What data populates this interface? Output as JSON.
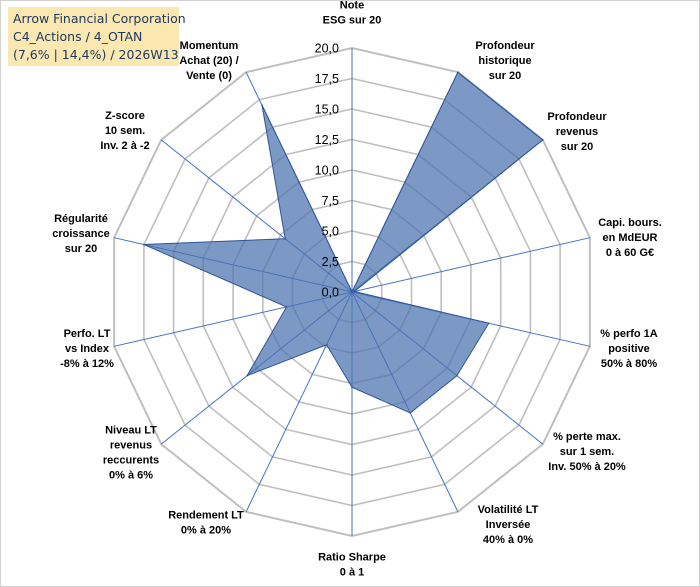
{
  "title_box": {
    "line1": "Arrow Financial Corporation",
    "line2": "C4_Actions / 4_OTAN",
    "line3": "(7,6% | 14,4%) / 2026W13"
  },
  "chart_data": {
    "type": "radar",
    "range": [
      0,
      20
    ],
    "ticks": [
      0,
      2.5,
      5,
      7.5,
      10,
      12.5,
      15,
      17.5,
      20
    ],
    "tick_labels": [
      "0,0",
      "2,5",
      "5,0",
      "7,5",
      "10,0",
      "12,5",
      "15,0",
      "17,5",
      "20,0"
    ],
    "grid": true,
    "axes": [
      {
        "label": [
          "Note",
          "ESG sur 20"
        ],
        "value": 0
      },
      {
        "label": [
          "Profondeur",
          "historique",
          "sur 20"
        ],
        "value": 20
      },
      {
        "label": [
          "Profondeur",
          "revenus",
          "sur 20"
        ],
        "value": 20
      },
      {
        "label": [
          "Capi. bours.",
          "en MdEUR",
          "0 à 60 G€"
        ],
        "value": 0.2
      },
      {
        "label": [
          "% perfo 1A",
          "positive",
          "50% à 80%"
        ],
        "value": 11.5
      },
      {
        "label": [
          "% perte max.",
          "sur 1 sem.",
          "Inv. 50% à 20%"
        ],
        "value": 11
      },
      {
        "label": [
          "Volatilité LT",
          "Inversée",
          "40% à 0%"
        ],
        "value": 11
      },
      {
        "label": [
          "Ratio Sharpe",
          "0 à 1"
        ],
        "value": 7.8
      },
      {
        "label": [
          "Rendement LT",
          "0% à 20%"
        ],
        "value": 4.8
      },
      {
        "label": [
          "Niveau LT",
          "revenus",
          "reccurents",
          "0% à 6%"
        ],
        "value": 11
      },
      {
        "label": [
          "Perfo. LT",
          "vs Index",
          "-8% à 12%"
        ],
        "value": 5.5
      },
      {
        "label": [
          "Régularité",
          "croissance",
          "sur 20"
        ],
        "value": 17.5
      },
      {
        "label": [
          "Z-score",
          "10 sem.",
          "Inv. 2 à -2"
        ],
        "value": 7
      },
      {
        "label": [
          "Momentum",
          "Achat (20) /",
          "Vente (0)"
        ],
        "value": 17
      }
    ],
    "colors": {
      "fill": "#4a72b0",
      "fill_opacity": 0.72,
      "stroke": "#2f5597",
      "grid": "#bfbfbf",
      "spoke": "#4472c4"
    }
  }
}
